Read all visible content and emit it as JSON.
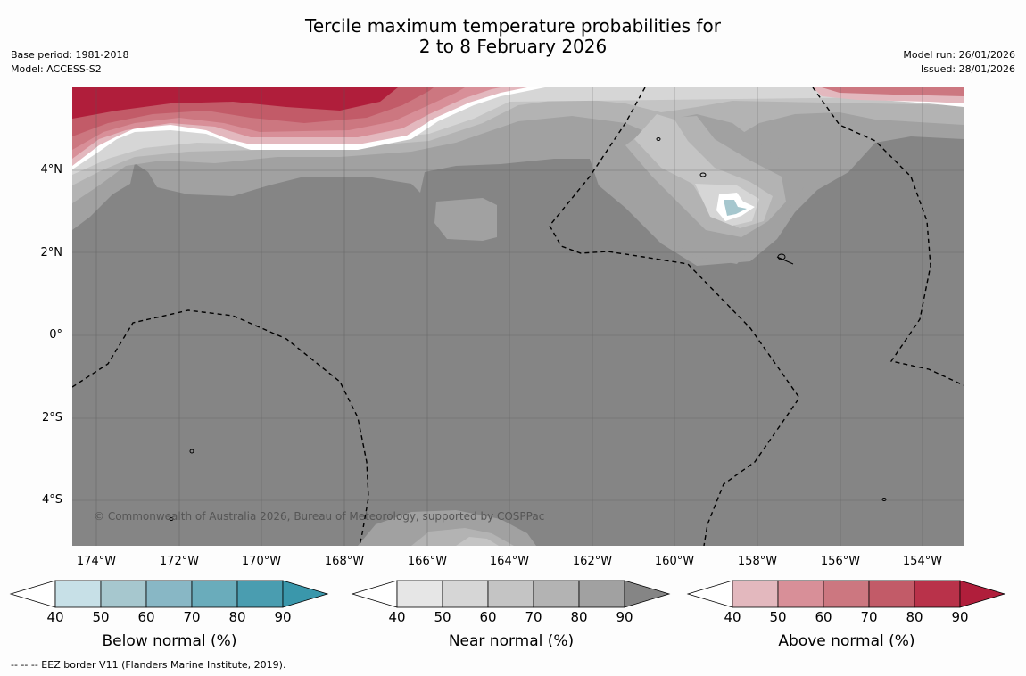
{
  "title": {
    "line1": "Tercile maximum temperature probabilities for",
    "line2": "2 to 8 February 2026"
  },
  "meta_left": {
    "base_period": "Base period: 1981-2018",
    "model": "Model: ACCESS-S2"
  },
  "meta_right": {
    "model_run": "Model run: 26/01/2026",
    "issued": "Issued: 28/01/2026"
  },
  "map": {
    "copyright": "© Commonwealth of Australia 2026, Bureau of Meteorology, supported by COSPPac",
    "lat_labels": [
      "4°N",
      "2°N",
      "0°",
      "2°S",
      "4°S"
    ],
    "lon_labels": [
      "174°W",
      "172°W",
      "170°W",
      "168°W",
      "166°W",
      "164°W",
      "162°W",
      "160°W",
      "158°W",
      "156°W",
      "154°W"
    ],
    "background_color": "#858585"
  },
  "colorbars": [
    {
      "title": "Below normal (%)",
      "ticks": [
        "40",
        "50",
        "60",
        "70",
        "80",
        "90"
      ],
      "colors": [
        "#ffffff",
        "#c7e0e7",
        "#a6c7ce",
        "#88b7c5",
        "#6aacbb",
        "#4a9db0",
        "#3a97ab"
      ]
    },
    {
      "title": "Near normal (%)",
      "ticks": [
        "40",
        "50",
        "60",
        "70",
        "80",
        "90"
      ],
      "colors": [
        "#ffffff",
        "#e6e6e6",
        "#d6d6d6",
        "#c4c4c4",
        "#b3b3b3",
        "#a1a1a1",
        "#858585"
      ]
    },
    {
      "title": "Above normal (%)",
      "ticks": [
        "40",
        "50",
        "60",
        "70",
        "80",
        "90"
      ],
      "colors": [
        "#ffffff",
        "#e3b8be",
        "#d88f98",
        "#cc7780",
        "#c25b68",
        "#b9324a",
        "#b01e3b"
      ]
    }
  ],
  "footnote": "--  --  -- EEZ border V11 (Flanders Marine Institute, 2019)."
}
